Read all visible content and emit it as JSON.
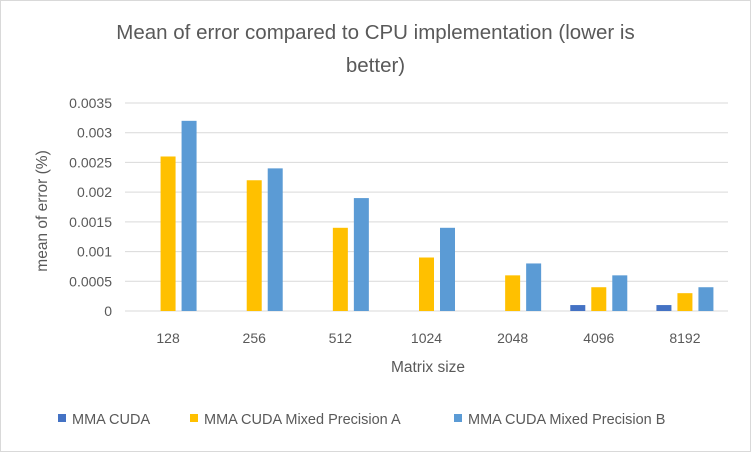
{
  "chart_data": {
    "type": "bar",
    "title": "Mean of error compared to CPU implementation (lower is better)",
    "title_line1": "Mean of error compared to CPU implementation (lower is",
    "title_line2": "better)",
    "xlabel": "Matrix size",
    "ylabel": "mean of error (%)",
    "categories": [
      "128",
      "256",
      "512",
      "1024",
      "2048",
      "4096",
      "8192"
    ],
    "ylim": [
      0,
      0.0035
    ],
    "yticks": [
      "0",
      "0.0005",
      "0.001",
      "0.0015",
      "0.002",
      "0.0025",
      "0.003",
      "0.0035"
    ],
    "grid": true,
    "legend_position": "bottom",
    "series": [
      {
        "name": "MMA CUDA",
        "color": "#4472c4",
        "values": [
          0,
          0,
          0,
          0,
          0,
          0.0001,
          0.0001
        ]
      },
      {
        "name": "MMA CUDA Mixed Precision A",
        "color": "#ffc000",
        "values": [
          0.0026,
          0.0022,
          0.0014,
          0.0009,
          0.0006,
          0.0004,
          0.0003
        ]
      },
      {
        "name": "MMA CUDA Mixed Precision B",
        "color": "#5b9bd5",
        "values": [
          0.0032,
          0.0024,
          0.0019,
          0.0014,
          0.0008,
          0.0006,
          0.0004
        ]
      }
    ]
  }
}
